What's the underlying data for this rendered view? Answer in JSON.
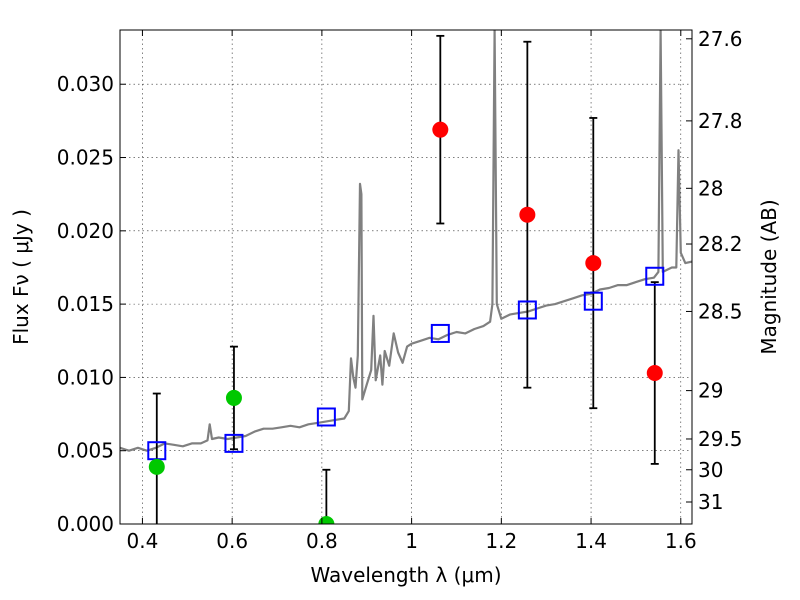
{
  "chart_data": {
    "type": "scatter",
    "xlabel": "Wavelength  λ (μm)",
    "ylabel": "Flux  Fν  ( μJy )",
    "ylabel_right": "Magnitude (AB)",
    "xlim": [
      0.35,
      1.625
    ],
    "ylim": [
      0.0,
      0.0337
    ],
    "x_ticks": [
      0.4,
      0.6,
      0.8,
      1.0,
      1.2,
      1.4,
      1.6
    ],
    "x_tick_labels": [
      "0.4",
      "0.6",
      "0.8",
      "1",
      "1.2",
      "1.4",
      "1.6"
    ],
    "y_ticks": [
      0.0,
      0.005,
      0.01,
      0.015,
      0.02,
      0.025,
      0.03
    ],
    "y_tick_labels": [
      "0.000",
      "0.005",
      "0.010",
      "0.015",
      "0.020",
      "0.025",
      "0.030"
    ],
    "right_ticks": [
      {
        "label": "27.6",
        "flux": 0.0331
      },
      {
        "label": "27.8",
        "flux": 0.0275
      },
      {
        "label": "28",
        "flux": 0.0229
      },
      {
        "label": "28.2",
        "flux": 0.0191
      },
      {
        "label": "28.5",
        "flux": 0.0145
      },
      {
        "label": "29",
        "flux": 0.0091
      },
      {
        "label": "29.5",
        "flux": 0.0058
      },
      {
        "label": "30",
        "flux": 0.0037
      },
      {
        "label": "31",
        "flux": 0.0015
      }
    ],
    "grid": true,
    "colors": {
      "model": "#808080",
      "green": "#00c800",
      "red": "#ff0000",
      "square": "#0000ff",
      "errorbar": "#000000"
    },
    "model_spectrum": [
      [
        0.35,
        0.0052
      ],
      [
        0.37,
        0.005
      ],
      [
        0.39,
        0.0052
      ],
      [
        0.41,
        0.005
      ],
      [
        0.43,
        0.0052
      ],
      [
        0.45,
        0.0055
      ],
      [
        0.47,
        0.0054
      ],
      [
        0.49,
        0.0053
      ],
      [
        0.51,
        0.0055
      ],
      [
        0.53,
        0.0055
      ],
      [
        0.545,
        0.0057
      ],
      [
        0.55,
        0.0068
      ],
      [
        0.555,
        0.0058
      ],
      [
        0.57,
        0.0059
      ],
      [
        0.59,
        0.0058
      ],
      [
        0.61,
        0.0059
      ],
      [
        0.63,
        0.006
      ],
      [
        0.65,
        0.0063
      ],
      [
        0.67,
        0.0065
      ],
      [
        0.69,
        0.0065
      ],
      [
        0.71,
        0.0066
      ],
      [
        0.73,
        0.0067
      ],
      [
        0.75,
        0.0066
      ],
      [
        0.77,
        0.0068
      ],
      [
        0.79,
        0.0069
      ],
      [
        0.81,
        0.007
      ],
      [
        0.83,
        0.0071
      ],
      [
        0.85,
        0.0072
      ],
      [
        0.86,
        0.0077
      ],
      [
        0.865,
        0.0113
      ],
      [
        0.87,
        0.01
      ],
      [
        0.875,
        0.0093
      ],
      [
        0.88,
        0.0115
      ],
      [
        0.885,
        0.0232
      ],
      [
        0.888,
        0.0225
      ],
      [
        0.89,
        0.0085
      ],
      [
        0.9,
        0.0095
      ],
      [
        0.91,
        0.0105
      ],
      [
        0.915,
        0.0142
      ],
      [
        0.92,
        0.0098
      ],
      [
        0.93,
        0.0115
      ],
      [
        0.935,
        0.0095
      ],
      [
        0.94,
        0.0118
      ],
      [
        0.95,
        0.0108
      ],
      [
        0.96,
        0.013
      ],
      [
        0.97,
        0.0117
      ],
      [
        0.98,
        0.011
      ],
      [
        0.99,
        0.0121
      ],
      [
        1.0,
        0.0123
      ],
      [
        1.02,
        0.0125
      ],
      [
        1.04,
        0.0127
      ],
      [
        1.06,
        0.0126
      ],
      [
        1.08,
        0.0129
      ],
      [
        1.1,
        0.0131
      ],
      [
        1.12,
        0.013
      ],
      [
        1.14,
        0.0133
      ],
      [
        1.16,
        0.0135
      ],
      [
        1.175,
        0.0138
      ],
      [
        1.18,
        0.015
      ],
      [
        1.185,
        0.0337
      ],
      [
        1.19,
        0.015
      ],
      [
        1.2,
        0.014
      ],
      [
        1.22,
        0.0143
      ],
      [
        1.24,
        0.0144
      ],
      [
        1.26,
        0.0145
      ],
      [
        1.28,
        0.0147
      ],
      [
        1.3,
        0.0149
      ],
      [
        1.32,
        0.015
      ],
      [
        1.34,
        0.0152
      ],
      [
        1.36,
        0.0154
      ],
      [
        1.38,
        0.0156
      ],
      [
        1.4,
        0.0157
      ],
      [
        1.42,
        0.016
      ],
      [
        1.44,
        0.0161
      ],
      [
        1.46,
        0.0163
      ],
      [
        1.48,
        0.0163
      ],
      [
        1.5,
        0.0165
      ],
      [
        1.52,
        0.0167
      ],
      [
        1.54,
        0.0168
      ],
      [
        1.55,
        0.0172
      ],
      [
        1.555,
        0.0337
      ],
      [
        1.56,
        0.0172
      ],
      [
        1.58,
        0.0175
      ],
      [
        1.59,
        0.0175
      ],
      [
        1.595,
        0.0255
      ],
      [
        1.6,
        0.0185
      ],
      [
        1.61,
        0.0178
      ],
      [
        1.625,
        0.0179
      ]
    ],
    "green_points": [
      {
        "x": 0.432,
        "y": 0.0039,
        "err": 0.005
      },
      {
        "x": 0.604,
        "y": 0.0086,
        "err": 0.0035
      },
      {
        "x": 0.81,
        "y": 0.0,
        "err": 0.0037
      }
    ],
    "red_points": [
      {
        "x": 1.064,
        "y": 0.0269,
        "err": 0.0064
      },
      {
        "x": 1.258,
        "y": 0.0211,
        "err": 0.0118
      },
      {
        "x": 1.405,
        "y": 0.0178,
        "err": 0.0099
      },
      {
        "x": 1.542,
        "y": 0.0103,
        "err": 0.0062
      }
    ],
    "model_squares": [
      {
        "x": 0.432,
        "y": 0.005
      },
      {
        "x": 0.604,
        "y": 0.0055
      },
      {
        "x": 0.81,
        "y": 0.0073
      },
      {
        "x": 1.064,
        "y": 0.013
      },
      {
        "x": 1.258,
        "y": 0.0146
      },
      {
        "x": 1.405,
        "y": 0.0152
      },
      {
        "x": 1.542,
        "y": 0.0169
      }
    ]
  }
}
